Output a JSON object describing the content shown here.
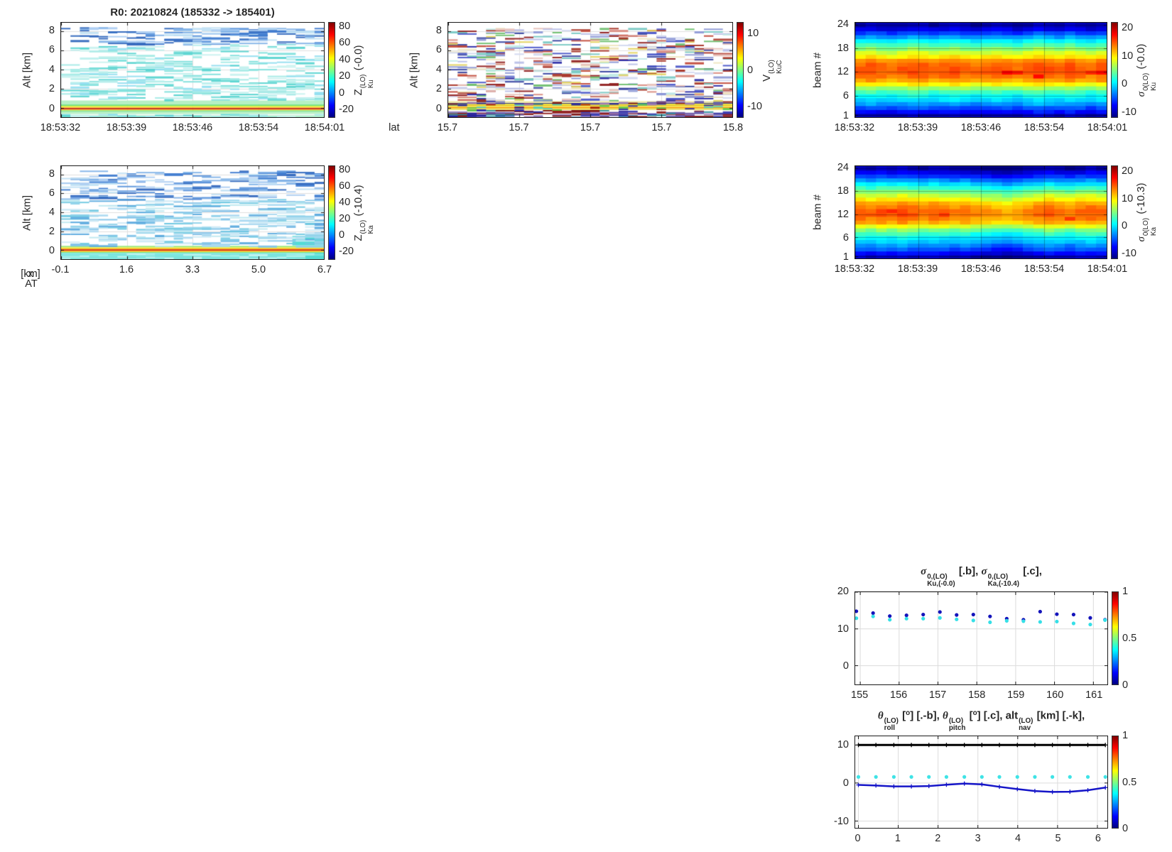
{
  "figure": {
    "background": "#ffffff"
  },
  "palettes": {
    "blues": [
      "#aecff2",
      "#84b4e8",
      "#5e96dc",
      "#3f7bd0",
      "#2f66bd",
      "#c2e2f4"
    ],
    "cyans": [
      "#c9f2ef",
      "#a5ebe6",
      "#7fe0dc",
      "#58d4d0",
      "#bff0ee",
      "#93dff0"
    ],
    "paleblues": [
      "#cfeaf6",
      "#a9d8f0",
      "#83c4e9",
      "#5caade",
      "#8fd2ea",
      "#bfe9f0",
      "#6fc8e2"
    ],
    "cyansLight": [
      "#9feee9",
      "#c2f5f2",
      "#7fe8e2"
    ],
    "vmix": [
      "#2b2ba8",
      "#4a56c8",
      "#8d99d6",
      "#b9c0e8",
      "#d3d9f0",
      "#a83325",
      "#c24a3a",
      "#d98b80",
      "#e8c2bb",
      "#e3d25a",
      "#efe6c0",
      "#79c9c4",
      "#c2ebe8",
      "#6fbf6f",
      "#8f1d1d",
      "#33409f"
    ],
    "vdark": [
      "#23239e",
      "#8f1d1d",
      "#3a3ab0",
      "#7a1010",
      "#6a5aaa",
      "#9a7ab8",
      "#2f8f9f"
    ],
    "vband": [
      "#5fc94f",
      "#4fd0c0",
      "#a81e06",
      "#2b2ba8"
    ]
  },
  "chart_data": [
    {
      "type": "curtain",
      "title_segments": [
        {
          "t": "R0:  20210824 (185332 -> 185401)"
        }
      ],
      "ylabel": "Alt [km]",
      "yticks": [
        8,
        6,
        4,
        2,
        0
      ],
      "yrange": [
        8.87,
        -0.95
      ],
      "xticks": {
        "labels": [
          "18:53:32",
          "18:53:39",
          "18:53:46",
          "18:53:54",
          "18:54:01"
        ],
        "fracs": [
          0,
          0.25,
          0.5,
          0.75,
          1
        ]
      },
      "colorbar": {
        "ticks": [
          80,
          60,
          40,
          20,
          0,
          -20
        ],
        "range": [
          85,
          -30
        ],
        "label_segments": [
          {
            "t": "Z",
            "sup": "(LO)",
            "sub": "Ku"
          },
          {
            "t": " (-0.0)"
          }
        ]
      },
      "render": {
        "seed": 7,
        "ncols": 28,
        "stripes": [
          [
            0.78,
            0.36,
            "#b6f0c4"
          ],
          [
            0.36,
            0.24,
            "#5fdf74"
          ],
          [
            0.24,
            0.14,
            "#c9ee4a"
          ],
          [
            0.14,
            0.06,
            "#f4ef2c"
          ],
          [
            0.06,
            -0.01,
            "#ffa012"
          ],
          [
            -0.01,
            -0.13,
            "#b81000"
          ],
          [
            -0.13,
            -0.19,
            "#ff8c12"
          ],
          [
            -0.19,
            -0.26,
            "#f2ee32"
          ],
          [
            -0.26,
            -0.35,
            "#5eda78"
          ],
          [
            -0.35,
            -0.62,
            "#b6f0c4"
          ],
          [
            -0.62,
            -0.78,
            "#e6f9ee"
          ],
          [
            -0.78,
            -0.95,
            "#b0edcb"
          ]
        ],
        "patches": [],
        "bands": [
          {
            "alt": [
              6.7,
              8.4
            ],
            "n": 120,
            "palette": "blues",
            "span": 3
          },
          {
            "alt": [
              1.0,
              6.7
            ],
            "n": 280,
            "palette": "cyans",
            "span": 3
          },
          {
            "alt": [
              0.85,
              1.7
            ],
            "n": 30,
            "palette": "cyans",
            "span": 2
          }
        ],
        "over": [
          {
            "alt": [
              -0.95,
              -0.6
            ],
            "n": 50,
            "palette": "cyans",
            "span": 2
          }
        ]
      }
    },
    {
      "type": "curtain",
      "ylabel": "Alt [km]",
      "xprefix": "lat",
      "yticks": [
        8,
        6,
        4,
        2,
        0
      ],
      "yrange": [
        8.87,
        -0.95
      ],
      "xticks": {
        "labels": [
          "15.7",
          "15.7",
          "15.7",
          "15.7",
          "15.8"
        ],
        "fracs": [
          0,
          0.25,
          0.5,
          0.75,
          1
        ]
      },
      "colorbar": {
        "ticks": [
          10,
          0,
          -10
        ],
        "range": [
          13,
          -13
        ],
        "label_segments": [
          {
            "t": "V",
            "sup": "(LO)",
            "sub": "KuC"
          }
        ]
      },
      "render": {
        "seed": 11,
        "ncols": 30,
        "stripes": [
          [
            0.72,
            0.52,
            "#efe9a8"
          ],
          [
            0.52,
            0.45,
            "#2a2a80"
          ],
          [
            0.45,
            0.3,
            "#eee23a"
          ],
          [
            0.3,
            0.22,
            "#e2bd1e"
          ],
          [
            0.22,
            0.1,
            "#f2e63a"
          ],
          [
            0.1,
            0.0,
            "#ff9c1a"
          ],
          [
            0.0,
            -0.1,
            "#eec824"
          ],
          [
            -0.1,
            -0.2,
            "#e8e05c"
          ]
        ],
        "patches": [],
        "bands": [
          {
            "alt": [
              0.8,
              8.35
            ],
            "n": 520,
            "palette": "vmix",
            "span": 2
          },
          {
            "alt": [
              -0.2,
              -0.95
            ],
            "n": 130,
            "palette": "vdark",
            "span": 2
          },
          {
            "alt": [
              0.75,
              0.45
            ],
            "n": 40,
            "palette": "vdark",
            "span": 1
          },
          {
            "alt": [
              0.45,
              -0.2
            ],
            "n": 30,
            "palette": "vband",
            "span": 1
          }
        ],
        "over": []
      }
    },
    {
      "type": "heatmap",
      "ylabel": "beam #",
      "yticks": [
        24,
        18,
        12,
        6,
        1
      ],
      "yrange": [
        24.5,
        0.5
      ],
      "xticks": {
        "labels": [
          "18:53:32",
          "18:53:39",
          "18:53:46",
          "18:53:54",
          "18:54:01"
        ],
        "fracs": [
          0,
          0.25,
          0.5,
          0.75,
          1
        ]
      },
      "colorbar": {
        "ticks": [
          20,
          10,
          0,
          -10
        ],
        "range": [
          22,
          -12
        ],
        "label_segments": [
          {
            "t": "σ",
            "i": 1,
            "sup": "0(LO)",
            "sub": "Ku"
          },
          {
            "t": " (-0.0)"
          }
        ]
      },
      "render": {
        "seed": 5,
        "ncols": 24,
        "noise": 0.6,
        "vrange": [
          -12,
          22
        ],
        "beam_profile": [
          -11,
          -8,
          -5.5,
          -3,
          -1,
          0.5,
          2.5,
          5.5,
          9,
          12,
          13.5,
          14.5,
          14.5,
          14,
          12.5,
          9.5,
          7.5,
          5,
          2.5,
          0,
          -3,
          -6,
          -9,
          -11
        ],
        "col_offsets": [
          0.3,
          0.8,
          0.2,
          -0.2,
          0.4,
          1.0,
          0.7,
          0.1,
          0.5,
          0.9,
          0.3,
          -0.2,
          0.2,
          0.7,
          0.3,
          -0.4,
          0.6,
          1.3,
          0.7,
          0.2,
          1.0,
          0.4,
          -0.2,
          0.7
        ],
        "spots": [
          [
            14,
            12,
            18
          ],
          [
            15,
            12,
            17
          ],
          [
            17,
            11,
            17.5
          ],
          [
            22,
            12,
            16.5
          ],
          [
            23,
            12,
            17.5
          ]
        ]
      }
    },
    {
      "type": "curtain",
      "ylabel": "Alt [km]",
      "xprefix_segments": [
        {
          "t": "x",
          "sub": "AT"
        },
        {
          "t": " [km]"
        }
      ],
      "yticks": [
        8,
        6,
        4,
        2,
        0
      ],
      "yrange": [
        8.87,
        -0.95
      ],
      "xticks": {
        "labels": [
          "-0.1",
          "1.6",
          "3.3",
          "5.0",
          "6.7"
        ],
        "fracs": [
          0,
          0.25,
          0.5,
          0.75,
          1
        ]
      },
      "colorbar": {
        "ticks": [
          80,
          60,
          40,
          20,
          0,
          -20
        ],
        "range": [
          85,
          -30
        ],
        "label_segments": [
          {
            "t": "Z",
            "sup": "(LO)",
            "sub": "Ka"
          },
          {
            "t": " (-10.4)"
          }
        ]
      },
      "render": {
        "seed": 13,
        "ncols": 28,
        "stripes": [
          [
            0.45,
            0.3,
            "#9ce87c"
          ],
          [
            0.3,
            0.18,
            "#eeea3c"
          ],
          [
            0.18,
            0.08,
            "#ffa81c"
          ],
          [
            0.08,
            -0.04,
            "#cc1a00"
          ],
          [
            -0.04,
            -0.12,
            "#ff8c14"
          ],
          [
            -0.12,
            -0.2,
            "#e8e84a"
          ],
          [
            -0.2,
            -0.3,
            "#7adf8a"
          ],
          [
            -0.3,
            -0.95,
            "#7ce4de"
          ]
        ],
        "patches": [
          {
            "x0": 0.88,
            "x1": 1.0,
            "a0": 1.5,
            "a1": 0.5,
            "c": "#52dcd6"
          },
          {
            "x0": 0.93,
            "x1": 1.0,
            "a0": -0.3,
            "a1": -0.95,
            "c": "#52dcd6"
          }
        ],
        "bands": [
          {
            "alt": [
              5.4,
              8.4
            ],
            "n": 160,
            "palette": "blues",
            "span": 3
          },
          {
            "alt": [
              0.5,
              5.4
            ],
            "n": 290,
            "palette": "paleblues",
            "span": 3
          }
        ],
        "over": [
          {
            "alt": [
              -0.3,
              -0.95
            ],
            "n": 60,
            "palette": "cyansLight",
            "span": 2
          }
        ]
      }
    },
    {
      "type": "heatmap",
      "ylabel": "beam #",
      "yticks": [
        24,
        18,
        12,
        6,
        1
      ],
      "yrange": [
        24.5,
        0.5
      ],
      "xticks": {
        "labels": [
          "18:53:32",
          "18:53:39",
          "18:53:46",
          "18:53:54",
          "18:54:01"
        ],
        "fracs": [
          0,
          0.25,
          0.5,
          0.75,
          1
        ]
      },
      "colorbar": {
        "ticks": [
          20,
          10,
          0,
          -10
        ],
        "range": [
          22,
          -12
        ],
        "label_segments": [
          {
            "t": "σ",
            "i": 1,
            "sup": "0(LO)",
            "sub": "Ka"
          },
          {
            "t": " (-10.3)"
          }
        ]
      },
      "render": {
        "seed": 17,
        "ncols": 24,
        "noise": 0.6,
        "vrange": [
          -12,
          22
        ],
        "beam_profile": [
          -10.5,
          -8,
          -5.5,
          -3.5,
          -1.5,
          0,
          2,
          4.5,
          8,
          11.5,
          13,
          14,
          14,
          13,
          11.5,
          9,
          7,
          4.5,
          2,
          -0.5,
          -3.5,
          -6.5,
          -9,
          -11
        ],
        "col_offsets": [
          1.0,
          0.4,
          1.1,
          0.7,
          1.4,
          0.8,
          0.3,
          0.8,
          0.3,
          -0.2,
          0.3,
          -0.6,
          -1.0,
          -1.6,
          -2.0,
          -1.2,
          -0.5,
          0.2,
          0.8,
          0.3,
          -0.3,
          0.5,
          0.8,
          0.3
        ],
        "spots": [
          [
            3,
            13,
            16.5
          ],
          [
            8,
            12,
            16
          ],
          [
            20,
            11,
            16
          ]
        ]
      }
    },
    {
      "type": "scatter",
      "title_segments": [
        {
          "t": "σ",
          "i": 1,
          "sup": "0,(LO)",
          "sub": "Ku,(-0.0)"
        },
        {
          "t": " [.b],  "
        },
        {
          "t": "σ",
          "i": 1,
          "sup": "0,(LO)",
          "sub": "Ka,(-10.4)"
        },
        {
          "t": " [.c],"
        }
      ],
      "yticks": [
        20,
        10,
        0
      ],
      "yrange": [
        20,
        -5.1
      ],
      "xrange": [
        154.87,
        161.36
      ],
      "xticks": {
        "labels": [
          "155",
          "156",
          "157",
          "158",
          "159",
          "160",
          "161"
        ],
        "values": [
          155,
          156,
          157,
          158,
          159,
          160,
          161
        ]
      },
      "colorbar": {
        "ticks": [
          1,
          0.5,
          0
        ],
        "range": [
          1,
          0
        ],
        "label_segments": []
      },
      "series": [
        {
          "name": "sigma0-Ku",
          "style": "dots",
          "color": "#1414bb",
          "x": [
            154.9,
            155.33,
            155.76,
            156.19,
            156.62,
            157.05,
            157.48,
            157.91,
            158.34,
            158.77,
            159.2,
            159.63,
            160.06,
            160.49,
            160.92,
            161.3
          ],
          "y": [
            14.8,
            14.3,
            13.5,
            13.7,
            13.9,
            14.6,
            13.8,
            13.9,
            13.4,
            12.8,
            12.5,
            14.7,
            14.0,
            13.9,
            13.0,
            12.5
          ]
        },
        {
          "name": "sigma0-Ka",
          "style": "dots",
          "color": "#36dfe7",
          "x": [
            154.9,
            155.33,
            155.76,
            156.19,
            156.62,
            157.05,
            157.48,
            157.91,
            158.34,
            158.77,
            159.2,
            159.63,
            160.06,
            160.49,
            160.92,
            161.3
          ],
          "y": [
            12.9,
            13.4,
            12.5,
            12.8,
            12.8,
            13.0,
            12.6,
            12.3,
            11.8,
            12.2,
            12.1,
            11.9,
            12.0,
            11.5,
            11.2,
            12.4
          ]
        }
      ]
    },
    {
      "type": "lines",
      "title_segments": [
        {
          "t": "θ",
          "i": 1,
          "sup": "(LO)",
          "sub": "roll"
        },
        {
          "t": " ["
        },
        {
          "t": "",
          "sup": "o"
        },
        {
          "t": "] [.-b],  "
        },
        {
          "t": "θ",
          "i": 1,
          "sup": "(LO)",
          "sub": "pitch"
        },
        {
          "t": " ["
        },
        {
          "t": "",
          "sup": "o"
        },
        {
          "t": "] [.c],  "
        },
        {
          "t": "alt",
          "sup": "(LO)",
          "sub": "nav"
        },
        {
          "t": " [km] [.-k],"
        }
      ],
      "yticks": [
        10,
        0,
        -10
      ],
      "yrange": [
        12.3,
        -11.8
      ],
      "xrange": [
        -0.08,
        6.25
      ],
      "xticks": {
        "labels": [
          "0",
          "1",
          "2",
          "3",
          "4",
          "5",
          "6"
        ],
        "values": [
          0,
          1,
          2,
          3,
          4,
          5,
          6
        ]
      },
      "colorbar": {
        "ticks": [
          1,
          0.5,
          0
        ],
        "range": [
          1,
          0
        ],
        "label_segments": []
      },
      "series": [
        {
          "name": "alt-nav",
          "style": "line+",
          "color": "#000000",
          "width": 3,
          "x": [
            0,
            0.44,
            0.89,
            1.33,
            1.77,
            2.21,
            2.66,
            3.1,
            3.54,
            3.99,
            4.43,
            4.87,
            5.31,
            5.76,
            6.2
          ],
          "y": [
            10,
            10,
            10,
            10,
            10,
            10,
            10,
            10,
            10,
            10,
            10,
            10,
            10,
            10,
            10
          ]
        },
        {
          "name": "pitch",
          "style": "dots",
          "color": "#3fe3e6",
          "x": [
            0,
            0.44,
            0.89,
            1.33,
            1.77,
            2.21,
            2.66,
            3.1,
            3.54,
            3.99,
            4.43,
            4.87,
            5.31,
            5.76,
            6.2
          ],
          "y": [
            1.6,
            1.6,
            1.6,
            1.6,
            1.6,
            1.6,
            1.6,
            1.6,
            1.6,
            1.6,
            1.6,
            1.6,
            1.6,
            1.6,
            1.6
          ]
        },
        {
          "name": "roll",
          "style": "line+",
          "color": "#1515c8",
          "width": 2.5,
          "x": [
            0,
            0.44,
            0.89,
            1.33,
            1.77,
            2.21,
            2.66,
            3.1,
            3.54,
            3.99,
            4.43,
            4.87,
            5.31,
            5.76,
            6.2
          ],
          "y": [
            -0.5,
            -0.65,
            -0.9,
            -0.9,
            -0.8,
            -0.45,
            -0.15,
            -0.35,
            -1.0,
            -1.6,
            -2.1,
            -2.35,
            -2.3,
            -1.9,
            -1.2
          ]
        }
      ]
    }
  ]
}
